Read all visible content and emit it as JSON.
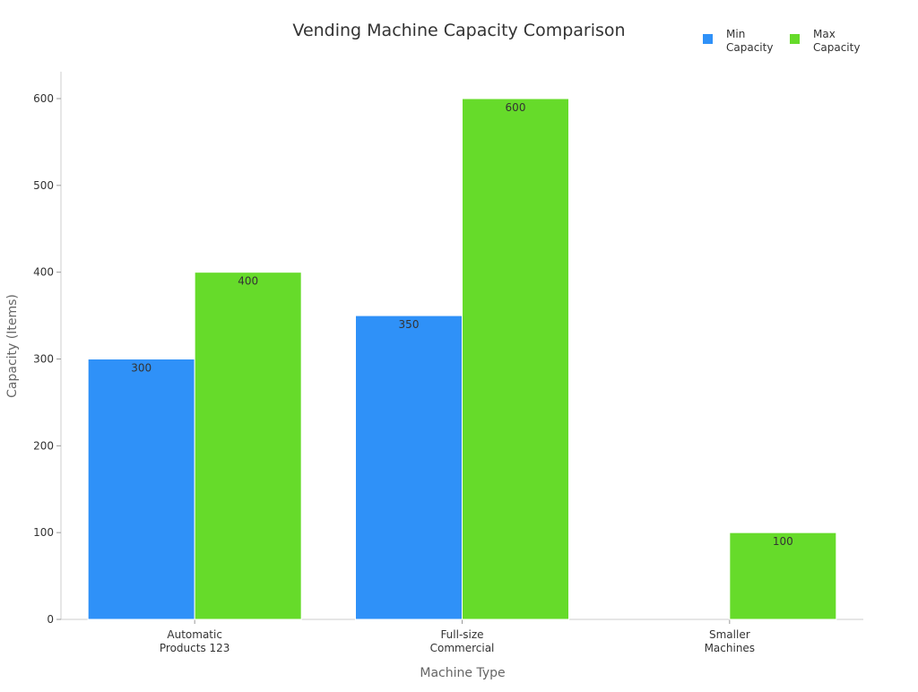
{
  "chart_data": {
    "type": "bar",
    "title": "Vending Machine Capacity Comparison",
    "xlabel": "Machine Type",
    "ylabel": "Capacity (Items)",
    "categories": [
      [
        "Automatic",
        "Products 123"
      ],
      [
        "Full-size",
        "Commercial"
      ],
      [
        "Smaller",
        "Machines"
      ]
    ],
    "series": [
      {
        "name": [
          "Min",
          "Capacity"
        ],
        "color": "#2f91f8",
        "values": [
          300,
          350,
          null
        ]
      },
      {
        "name": [
          "Max",
          "Capacity"
        ],
        "color": "#66db2a",
        "values": [
          400,
          600,
          100
        ]
      }
    ],
    "ylim": [
      0,
      600
    ],
    "yticks": [
      0,
      100,
      200,
      300,
      400,
      500,
      600
    ],
    "grid": false,
    "legend": "top-right",
    "data_labels": true
  }
}
